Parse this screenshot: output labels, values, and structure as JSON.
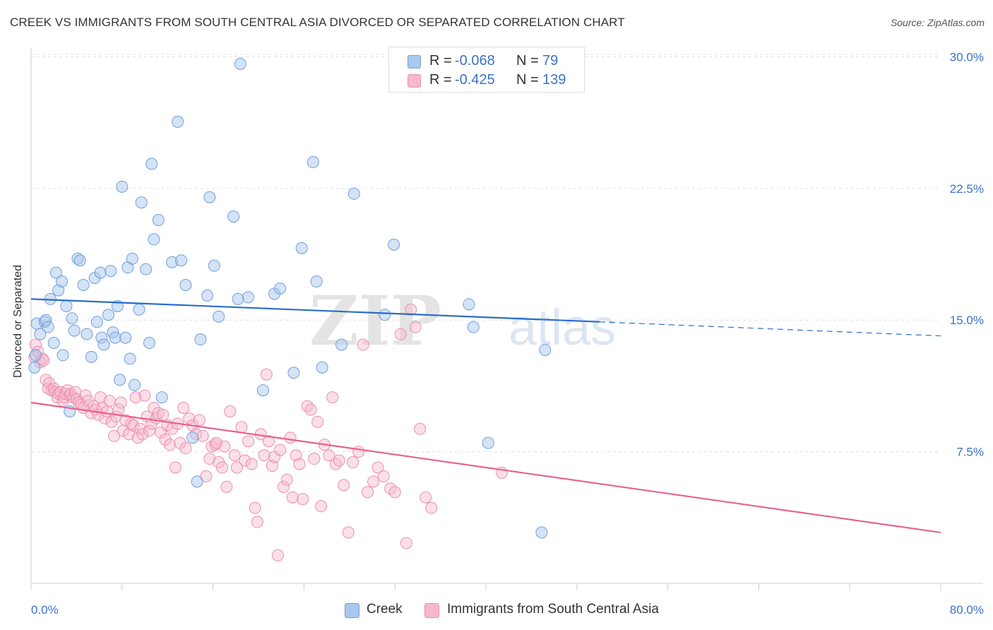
{
  "header": {
    "title": "CREEK VS IMMIGRANTS FROM SOUTH CENTRAL ASIA DIVORCED OR SEPARATED CORRELATION CHART",
    "source": "Source: ZipAtlas.com"
  },
  "watermark": {
    "zip": "ZIP",
    "atlas": "atlas"
  },
  "legend_top": [
    {
      "r_label": "R =",
      "r_value": "-0.068",
      "n_label": "N =",
      "n_value": "79"
    },
    {
      "r_label": "R =",
      "r_value": "-0.425",
      "n_label": "N =",
      "n_value": "139"
    }
  ],
  "legend_bottom": [
    "Creek",
    "Immigrants from South Central Asia"
  ],
  "colors": {
    "creek_fill": "#a9c8ee",
    "creek_stroke": "#6f9fd9",
    "creek_line": "#2a6cc9",
    "imm_fill": "#f6b8cc",
    "imm_stroke": "#ea8fb0",
    "imm_line": "#e8628f",
    "tick_label": "#3a73c9",
    "grid": "#e0e0e0"
  },
  "chart_data": {
    "type": "scatter",
    "title": "CREEK VS IMMIGRANTS FROM SOUTH CENTRAL ASIA DIVORCED OR SEPARATED CORRELATION CHART",
    "xlabel": "",
    "ylabel": "Divorced or Separated",
    "xlim": [
      0,
      80
    ],
    "ylim": [
      0,
      30.5
    ],
    "x_tick_labels": [
      "0.0%",
      "80.0%"
    ],
    "y_ticks": [
      7.5,
      15.0,
      22.5,
      30.0
    ],
    "y_tick_labels": [
      "7.5%",
      "15.0%",
      "22.5%",
      "30.0%"
    ],
    "grid": "horizontal dashed",
    "legend_position": "top-center",
    "series": [
      {
        "name": "Creek",
        "r": -0.068,
        "n": 79,
        "trend": {
          "x": [
            0,
            50
          ],
          "y": [
            16.2,
            14.9
          ],
          "dashed_to_x": 80,
          "dashed_to_y": 14.1
        },
        "points": [
          [
            0.3,
            12.3
          ],
          [
            0.4,
            13.0
          ],
          [
            0.5,
            14.8
          ],
          [
            0.8,
            14.2
          ],
          [
            1.2,
            14.9
          ],
          [
            1.3,
            15.0
          ],
          [
            1.5,
            14.6
          ],
          [
            1.7,
            16.2
          ],
          [
            2.0,
            13.7
          ],
          [
            2.2,
            17.7
          ],
          [
            2.4,
            16.7
          ],
          [
            2.7,
            17.2
          ],
          [
            2.8,
            13.0
          ],
          [
            3.1,
            15.8
          ],
          [
            3.4,
            9.8
          ],
          [
            3.6,
            15.1
          ],
          [
            3.8,
            14.4
          ],
          [
            4.1,
            18.5
          ],
          [
            4.3,
            18.4
          ],
          [
            4.6,
            17.0
          ],
          [
            4.9,
            14.2
          ],
          [
            5.3,
            12.9
          ],
          [
            5.6,
            17.4
          ],
          [
            5.8,
            14.9
          ],
          [
            6.1,
            17.7
          ],
          [
            6.2,
            14.0
          ],
          [
            6.4,
            13.6
          ],
          [
            6.8,
            15.3
          ],
          [
            7.0,
            17.8
          ],
          [
            7.2,
            14.3
          ],
          [
            7.4,
            14.0
          ],
          [
            7.6,
            15.8
          ],
          [
            7.8,
            11.6
          ],
          [
            8.0,
            22.6
          ],
          [
            8.3,
            14.0
          ],
          [
            8.5,
            18.0
          ],
          [
            8.7,
            12.8
          ],
          [
            8.9,
            18.5
          ],
          [
            9.1,
            11.3
          ],
          [
            9.5,
            15.6
          ],
          [
            9.7,
            21.7
          ],
          [
            10.1,
            17.9
          ],
          [
            10.4,
            13.7
          ],
          [
            10.6,
            23.9
          ],
          [
            10.8,
            19.6
          ],
          [
            11.2,
            20.7
          ],
          [
            11.5,
            10.6
          ],
          [
            12.4,
            18.3
          ],
          [
            12.9,
            26.3
          ],
          [
            13.2,
            18.4
          ],
          [
            13.6,
            17.0
          ],
          [
            14.2,
            8.3
          ],
          [
            14.6,
            5.8
          ],
          [
            14.9,
            13.9
          ],
          [
            15.5,
            16.4
          ],
          [
            15.7,
            22.0
          ],
          [
            16.1,
            18.1
          ],
          [
            16.5,
            15.2
          ],
          [
            17.8,
            20.9
          ],
          [
            18.2,
            16.2
          ],
          [
            18.4,
            29.6
          ],
          [
            19.1,
            16.3
          ],
          [
            20.4,
            11.0
          ],
          [
            21.4,
            16.5
          ],
          [
            21.9,
            16.8
          ],
          [
            23.1,
            12.0
          ],
          [
            23.8,
            19.1
          ],
          [
            24.8,
            24.0
          ],
          [
            25.1,
            17.2
          ],
          [
            25.6,
            12.3
          ],
          [
            27.3,
            13.6
          ],
          [
            28.4,
            22.2
          ],
          [
            31.1,
            15.3
          ],
          [
            31.9,
            19.3
          ],
          [
            38.5,
            15.9
          ],
          [
            38.9,
            14.6
          ],
          [
            40.2,
            8.0
          ],
          [
            44.9,
            2.9
          ],
          [
            45.2,
            13.3
          ]
        ]
      },
      {
        "name": "Immigrants from South Central Asia",
        "r": -0.425,
        "n": 139,
        "trend": {
          "x": [
            0,
            80
          ],
          "y": [
            10.3,
            2.9
          ]
        },
        "points": [
          [
            0.3,
            12.9
          ],
          [
            0.4,
            13.6
          ],
          [
            0.6,
            13.2
          ],
          [
            0.8,
            12.6
          ],
          [
            1.0,
            12.8
          ],
          [
            1.1,
            12.7
          ],
          [
            1.3,
            11.6
          ],
          [
            1.5,
            11.1
          ],
          [
            1.6,
            11.4
          ],
          [
            1.8,
            11.0
          ],
          [
            2.0,
            11.1
          ],
          [
            2.1,
            10.9
          ],
          [
            2.3,
            10.6
          ],
          [
            2.4,
            10.8
          ],
          [
            2.6,
            10.9
          ],
          [
            2.8,
            10.4
          ],
          [
            2.9,
            10.6
          ],
          [
            3.0,
            10.8
          ],
          [
            3.2,
            11.0
          ],
          [
            3.4,
            10.7
          ],
          [
            3.5,
            10.8
          ],
          [
            3.7,
            10.6
          ],
          [
            3.9,
            10.9
          ],
          [
            4.0,
            10.5
          ],
          [
            4.2,
            10.3
          ],
          [
            4.4,
            10.2
          ],
          [
            4.6,
            10.0
          ],
          [
            4.8,
            10.7
          ],
          [
            5.0,
            10.4
          ],
          [
            5.3,
            9.7
          ],
          [
            5.5,
            10.1
          ],
          [
            5.7,
            9.9
          ],
          [
            5.9,
            9.6
          ],
          [
            6.1,
            10.6
          ],
          [
            6.3,
            10.0
          ],
          [
            6.5,
            9.4
          ],
          [
            6.7,
            9.8
          ],
          [
            6.9,
            10.4
          ],
          [
            7.1,
            9.2
          ],
          [
            7.3,
            8.4
          ],
          [
            7.5,
            9.5
          ],
          [
            7.7,
            9.9
          ],
          [
            7.9,
            10.3
          ],
          [
            8.1,
            8.7
          ],
          [
            8.3,
            9.3
          ],
          [
            8.6,
            8.5
          ],
          [
            8.8,
            9.1
          ],
          [
            9.0,
            9.0
          ],
          [
            9.2,
            10.6
          ],
          [
            9.4,
            8.3
          ],
          [
            9.6,
            8.8
          ],
          [
            9.8,
            8.5
          ],
          [
            10.0,
            10.7
          ],
          [
            10.2,
            9.5
          ],
          [
            10.4,
            8.7
          ],
          [
            10.6,
            9.1
          ],
          [
            10.8,
            10.0
          ],
          [
            11.0,
            9.4
          ],
          [
            11.2,
            9.7
          ],
          [
            11.4,
            8.6
          ],
          [
            11.6,
            9.6
          ],
          [
            11.8,
            8.2
          ],
          [
            12.0,
            9.0
          ],
          [
            12.2,
            7.9
          ],
          [
            12.4,
            8.8
          ],
          [
            12.7,
            6.6
          ],
          [
            12.9,
            9.1
          ],
          [
            13.1,
            8.0
          ],
          [
            13.4,
            10.0
          ],
          [
            13.6,
            7.7
          ],
          [
            13.9,
            9.4
          ],
          [
            14.2,
            9.0
          ],
          [
            14.5,
            8.5
          ],
          [
            14.8,
            9.3
          ],
          [
            15.1,
            8.4
          ],
          [
            15.4,
            6.1
          ],
          [
            15.7,
            7.1
          ],
          [
            15.9,
            7.8
          ],
          [
            16.2,
            7.9
          ],
          [
            16.5,
            6.9
          ],
          [
            16.8,
            6.6
          ],
          [
            17.0,
            7.8
          ],
          [
            17.2,
            5.5
          ],
          [
            17.5,
            9.8
          ],
          [
            17.9,
            7.3
          ],
          [
            18.1,
            6.6
          ],
          [
            18.5,
            8.9
          ],
          [
            18.8,
            7.0
          ],
          [
            19.1,
            8.1
          ],
          [
            19.4,
            6.8
          ],
          [
            19.7,
            4.3
          ],
          [
            19.9,
            3.5
          ],
          [
            20.2,
            8.5
          ],
          [
            20.5,
            7.3
          ],
          [
            20.7,
            11.9
          ],
          [
            20.9,
            8.1
          ],
          [
            21.2,
            6.7
          ],
          [
            21.4,
            7.2
          ],
          [
            21.7,
            1.6
          ],
          [
            21.9,
            7.6
          ],
          [
            22.2,
            5.5
          ],
          [
            22.5,
            5.9
          ],
          [
            22.8,
            8.3
          ],
          [
            23.0,
            4.9
          ],
          [
            23.3,
            7.3
          ],
          [
            23.6,
            6.8
          ],
          [
            23.9,
            4.8
          ],
          [
            24.3,
            10.1
          ],
          [
            24.6,
            9.9
          ],
          [
            24.9,
            7.1
          ],
          [
            25.2,
            9.2
          ],
          [
            25.5,
            4.4
          ],
          [
            25.8,
            7.9
          ],
          [
            26.2,
            7.3
          ],
          [
            26.5,
            10.6
          ],
          [
            26.8,
            6.8
          ],
          [
            27.1,
            7.0
          ],
          [
            27.5,
            5.6
          ],
          [
            27.9,
            2.9
          ],
          [
            28.3,
            6.9
          ],
          [
            28.8,
            7.5
          ],
          [
            29.2,
            13.6
          ],
          [
            29.6,
            5.2
          ],
          [
            30.1,
            5.8
          ],
          [
            30.5,
            6.6
          ],
          [
            31.0,
            6.1
          ],
          [
            31.6,
            5.4
          ],
          [
            32.0,
            5.2
          ],
          [
            32.5,
            14.2
          ],
          [
            33.0,
            2.3
          ],
          [
            33.4,
            15.6
          ],
          [
            33.8,
            14.6
          ],
          [
            34.2,
            8.8
          ],
          [
            34.7,
            4.9
          ],
          [
            35.2,
            4.3
          ],
          [
            41.4,
            6.3
          ],
          [
            16.3,
            8.0
          ]
        ]
      }
    ]
  }
}
